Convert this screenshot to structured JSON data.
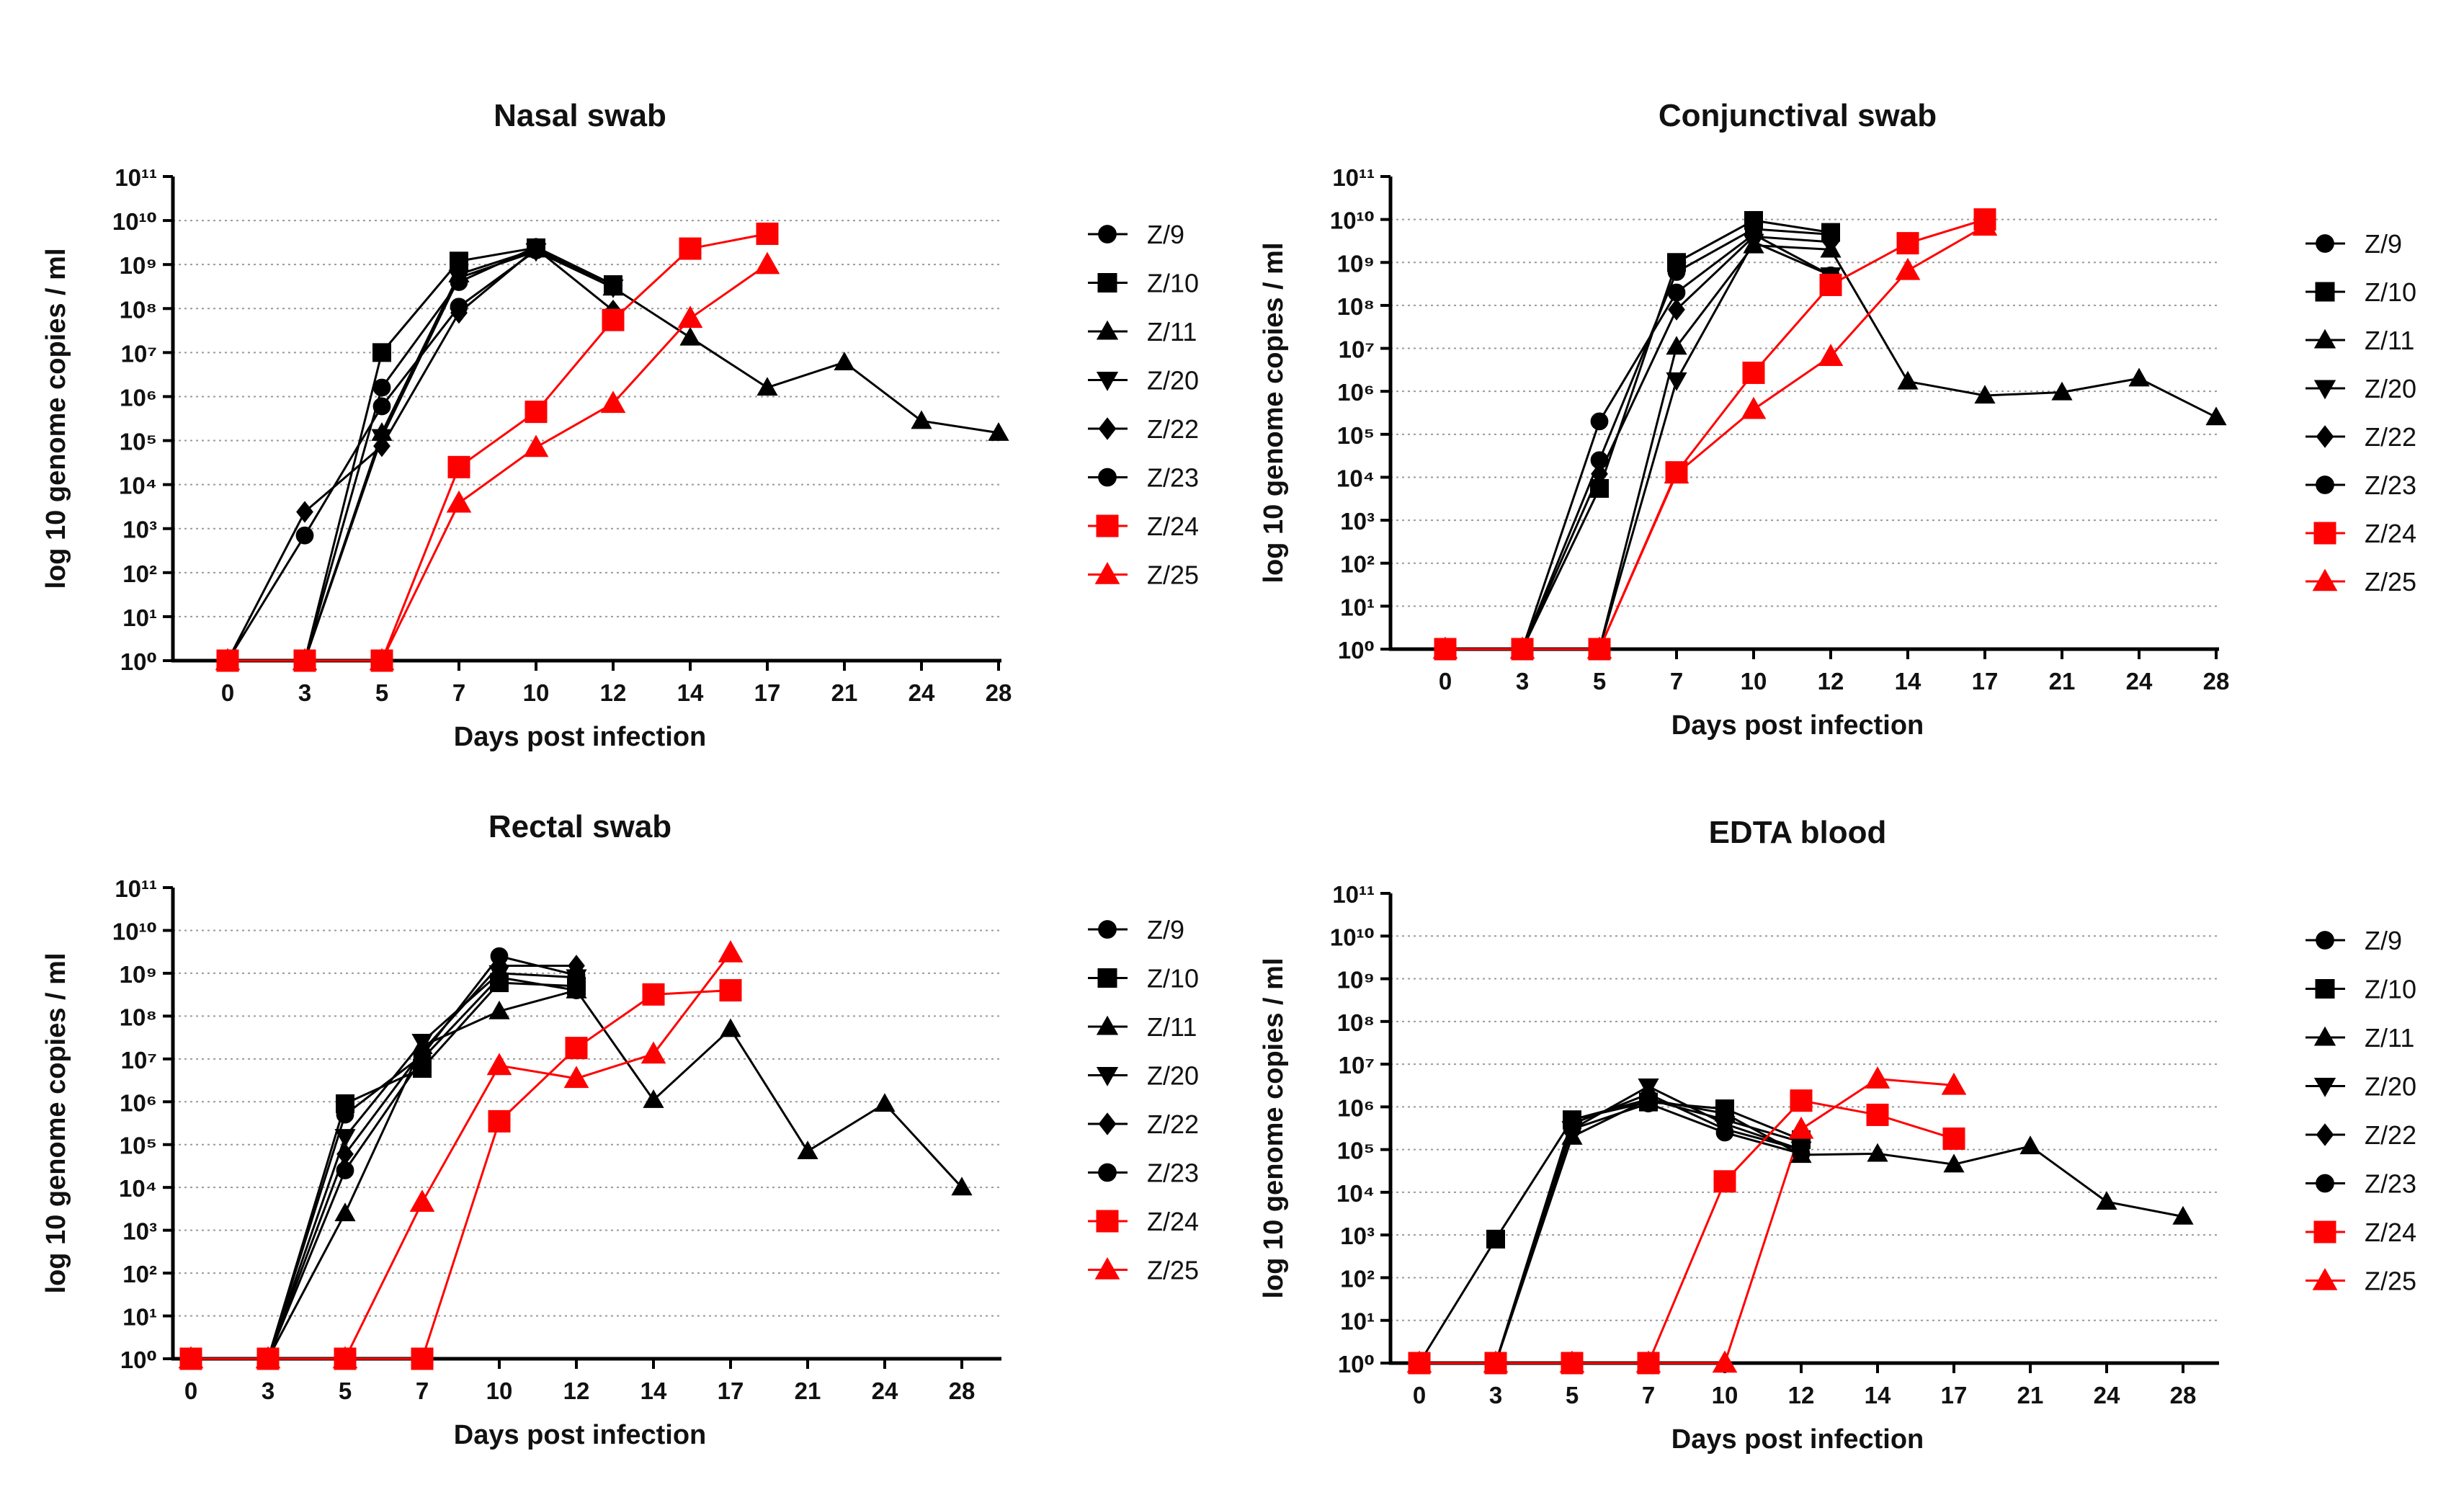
{
  "chart_data": [
    {
      "type": "line",
      "title": "Nasal swab",
      "xlabel": "Days post infection",
      "ylabel": "log 10 genome copies / ml",
      "x_categories": [
        "0",
        "3",
        "5",
        "7",
        "10",
        "12",
        "14",
        "17",
        "21",
        "24",
        "28"
      ],
      "yscale": "log10",
      "ylim_exp": [
        0,
        11
      ],
      "grid": "horizontal dotted",
      "legend": "right",
      "series": [
        {
          "name": "Z/9",
          "marker": "circle",
          "color": "#000000",
          "x": [
            "0",
            "3",
            "5",
            "7",
            "10",
            "12"
          ],
          "y": [
            1,
            1,
            1600000,
            400000000,
            2500000000,
            350000000
          ]
        },
        {
          "name": "Z/10",
          "marker": "square",
          "color": "#000000",
          "x": [
            "0",
            "3",
            "5",
            "7",
            "10",
            "12"
          ],
          "y": [
            1,
            1,
            10000000,
            1200000000,
            2400000000,
            350000000
          ]
        },
        {
          "name": "Z/11",
          "marker": "triangle-up",
          "color": "#000000",
          "x": [
            "0",
            "3",
            "5",
            "7",
            "10",
            "12",
            "14",
            "17",
            "21",
            "24",
            "28"
          ],
          "y": [
            1,
            1,
            150000,
            600000000,
            2200000000,
            300000000,
            22000000,
            1600000,
            6000000,
            280000,
            150000
          ]
        },
        {
          "name": "Z/20",
          "marker": "triangle-down",
          "color": "#000000",
          "x": [
            "0",
            "3",
            "5",
            "7",
            "10",
            "12"
          ],
          "y": [
            1,
            1,
            120000,
            500000000,
            2000000000,
            300000000
          ]
        },
        {
          "name": "Z/22",
          "marker": "diamond",
          "color": "#000000",
          "x": [
            "0",
            "3",
            "5",
            "7",
            "10",
            "12"
          ],
          "y": [
            1,
            2400,
            75000,
            80000000,
            2300000000,
            90000000
          ]
        },
        {
          "name": "Z/23",
          "marker": "circle",
          "color": "#000000",
          "x": [
            "0",
            "3",
            "5",
            "7",
            "10",
            "12"
          ],
          "y": [
            1,
            700,
            600000,
            110000000,
            2100000000,
            350000000
          ]
        },
        {
          "name": "Z/24",
          "marker": "square",
          "color": "#ff0000",
          "x": [
            "0",
            "3",
            "5",
            "7",
            "10",
            "12",
            "14",
            "17"
          ],
          "y": [
            1,
            1,
            1,
            25000,
            450000,
            55000000,
            2300000000,
            5000000000
          ]
        },
        {
          "name": "Z/25",
          "marker": "triangle-up",
          "color": "#ff0000",
          "x": [
            "0",
            "3",
            "5",
            "7",
            "10",
            "12",
            "14",
            "17"
          ],
          "y": [
            1,
            1,
            1,
            3800,
            70000,
            700000,
            60000000,
            1000000000
          ]
        }
      ]
    },
    {
      "type": "line",
      "title": "Conjunctival swab",
      "xlabel": "Days post infection",
      "ylabel": "log 10 genome copies / ml",
      "x_categories": [
        "0",
        "3",
        "5",
        "7",
        "10",
        "12",
        "14",
        "17",
        "21",
        "24",
        "28"
      ],
      "yscale": "log10",
      "ylim_exp": [
        0,
        11
      ],
      "grid": "horizontal dotted",
      "legend": "right",
      "series": [
        {
          "name": "Z/9",
          "marker": "circle",
          "color": "#000000",
          "x": [
            "0",
            "3",
            "5",
            "7",
            "10",
            "12"
          ],
          "y": [
            1,
            1,
            25000,
            600000000,
            6000000000,
            4500000000
          ]
        },
        {
          "name": "Z/10",
          "marker": "square",
          "color": "#000000",
          "x": [
            "0",
            "3",
            "5",
            "7",
            "10",
            "12"
          ],
          "y": [
            1,
            1,
            5500,
            1000000000,
            9500000000,
            5000000000
          ]
        },
        {
          "name": "Z/11",
          "marker": "triangle-up",
          "color": "#000000",
          "x": [
            "0",
            "3",
            "5",
            "7",
            "10",
            "12",
            "14",
            "17",
            "21",
            "24",
            "28"
          ],
          "y": [
            1,
            1,
            1,
            11000000,
            2500000000,
            2000000000,
            1700000,
            800000,
            950000,
            2000000,
            250000
          ]
        },
        {
          "name": "Z/20",
          "marker": "triangle-down",
          "color": "#000000",
          "x": [
            "0",
            "3",
            "5",
            "7",
            "10",
            "12"
          ],
          "y": [
            1,
            1,
            1,
            1800000,
            3000000000,
            500000000
          ]
        },
        {
          "name": "Z/22",
          "marker": "diamond",
          "color": "#000000",
          "x": [
            "0",
            "3",
            "5",
            "7",
            "10",
            "12"
          ],
          "y": [
            1,
            1,
            12000,
            80000000,
            4000000000,
            3000000000
          ]
        },
        {
          "name": "Z/23",
          "marker": "circle",
          "color": "#000000",
          "x": [
            "0",
            "3",
            "5",
            "7",
            "10",
            "12"
          ],
          "y": [
            1,
            1,
            200000,
            200000000,
            4500000000,
            500000000
          ]
        },
        {
          "name": "Z/24",
          "marker": "square",
          "color": "#ff0000",
          "x": [
            "0",
            "3",
            "5",
            "7",
            "10",
            "12",
            "14",
            "17"
          ],
          "y": [
            1,
            1,
            1,
            13000,
            2700000,
            300000000,
            2800000000,
            10000000000
          ]
        },
        {
          "name": "Z/25",
          "marker": "triangle-up",
          "color": "#ff0000",
          "x": [
            "0",
            "3",
            "5",
            "7",
            "10",
            "12",
            "14",
            "17"
          ],
          "y": [
            1,
            1,
            1,
            12000,
            380000,
            6500000,
            650000000,
            7000000000
          ]
        }
      ]
    },
    {
      "type": "line",
      "title": "Rectal swab",
      "xlabel": "Days post infection",
      "ylabel": "log 10 genome copies / ml",
      "x_categories": [
        "0",
        "3",
        "5",
        "7",
        "10",
        "12",
        "14",
        "17",
        "21",
        "24",
        "28"
      ],
      "yscale": "log10",
      "ylim_exp": [
        0,
        11
      ],
      "grid": "horizontal dotted",
      "legend": "right",
      "series": [
        {
          "name": "Z/9",
          "marker": "circle",
          "color": "#000000",
          "x": [
            "0",
            "3",
            "5",
            "7",
            "10",
            "12"
          ],
          "y": [
            1,
            1,
            500000,
            12000000,
            2500000000,
            900000000
          ]
        },
        {
          "name": "Z/10",
          "marker": "square",
          "color": "#000000",
          "x": [
            "0",
            "3",
            "5",
            "7",
            "10",
            "12"
          ],
          "y": [
            1,
            1,
            900000,
            6000000,
            600000000,
            500000000
          ]
        },
        {
          "name": "Z/11",
          "marker": "triangle-up",
          "color": "#000000",
          "x": [
            "0",
            "3",
            "5",
            "7",
            "10",
            "12",
            "14",
            "17",
            "21",
            "24",
            "28"
          ],
          "y": [
            1,
            1,
            2500,
            20000000,
            130000000,
            400000000,
            1100000,
            50000000,
            70000,
            900000,
            10000
          ]
        },
        {
          "name": "Z/20",
          "marker": "triangle-down",
          "color": "#000000",
          "x": [
            "0",
            "3",
            "5",
            "7",
            "10",
            "12"
          ],
          "y": [
            1,
            1,
            150000,
            25000000,
            1000000000,
            800000000
          ]
        },
        {
          "name": "Z/22",
          "marker": "diamond",
          "color": "#000000",
          "x": [
            "0",
            "3",
            "5",
            "7",
            "10",
            "12"
          ],
          "y": [
            1,
            1,
            60000,
            15000000,
            1500000000,
            1500000000
          ]
        },
        {
          "name": "Z/23",
          "marker": "circle",
          "color": "#000000",
          "x": [
            "0",
            "3",
            "5",
            "7",
            "10",
            "12"
          ],
          "y": [
            1,
            1,
            25000,
            10000000,
            800000000,
            400000000
          ]
        },
        {
          "name": "Z/24",
          "marker": "square",
          "color": "#ff0000",
          "x": [
            "0",
            "3",
            "5",
            "7",
            "10",
            "12",
            "14",
            "17"
          ],
          "y": [
            1,
            1,
            1,
            1,
            350000,
            18000000,
            320000000,
            400000000
          ]
        },
        {
          "name": "Z/25",
          "marker": "triangle-up",
          "color": "#ff0000",
          "x": [
            "0",
            "3",
            "5",
            "7",
            "10",
            "12",
            "14",
            "17"
          ],
          "y": [
            1,
            1,
            1,
            4500,
            7000000,
            3500000,
            13000000,
            3000000000
          ]
        }
      ]
    },
    {
      "type": "line",
      "title": "EDTA blood",
      "xlabel": "Days post infection",
      "ylabel": "log 10 genome copies / ml",
      "x_categories": [
        "0",
        "3",
        "5",
        "7",
        "10",
        "12",
        "14",
        "17",
        "21",
        "24",
        "28"
      ],
      "yscale": "log10",
      "ylim_exp": [
        0,
        11
      ],
      "grid": "horizontal dotted",
      "legend": "right",
      "series": [
        {
          "name": "Z/9",
          "marker": "circle",
          "color": "#000000",
          "x": [
            "0",
            "3",
            "5",
            "7",
            "10",
            "12"
          ],
          "y": [
            1,
            1,
            500000,
            1500000,
            500000,
            150000
          ]
        },
        {
          "name": "Z/10",
          "marker": "square",
          "color": "#000000",
          "x": [
            "0",
            "3",
            "5",
            "7",
            "10",
            "12"
          ],
          "y": [
            1,
            800,
            500000,
            1300000,
            900000,
            170000
          ]
        },
        {
          "name": "Z/11",
          "marker": "triangle-up",
          "color": "#000000",
          "x": [
            "0",
            "3",
            "5",
            "7",
            "10",
            "12",
            "14",
            "17",
            "21",
            "24",
            "28"
          ],
          "y": [
            1,
            1,
            200000,
            1500000,
            700000,
            75000,
            80000,
            45000,
            120000,
            6000,
            2700
          ]
        },
        {
          "name": "Z/20",
          "marker": "triangle-down",
          "color": "#000000",
          "x": [
            "0",
            "3",
            "5",
            "7",
            "10",
            "12"
          ],
          "y": [
            1,
            1,
            300000,
            3000000,
            400000,
            100000
          ]
        },
        {
          "name": "Z/22",
          "marker": "diamond",
          "color": "#000000",
          "x": [
            "0",
            "3",
            "5",
            "7",
            "10",
            "12"
          ],
          "y": [
            1,
            1,
            400000,
            2000000,
            300000,
            100000
          ]
        },
        {
          "name": "Z/23",
          "marker": "circle",
          "color": "#000000",
          "x": [
            "0",
            "3",
            "5",
            "7",
            "10",
            "12"
          ],
          "y": [
            1,
            1,
            300000,
            1200000,
            250000,
            80000
          ]
        },
        {
          "name": "Z/24",
          "marker": "square",
          "color": "#ff0000",
          "x": [
            "0",
            "3",
            "5",
            "7",
            "10",
            "12",
            "14",
            "17"
          ],
          "y": [
            1,
            1,
            1,
            1,
            18000,
            1400000,
            650000,
            180000
          ]
        },
        {
          "name": "Z/25",
          "marker": "triangle-up",
          "color": "#ff0000",
          "x": [
            "0",
            "3",
            "5",
            "7",
            "10",
            "12",
            "14",
            "17"
          ],
          "y": [
            1,
            1,
            1,
            1,
            1,
            300000,
            4500000,
            3200000
          ]
        }
      ]
    }
  ]
}
